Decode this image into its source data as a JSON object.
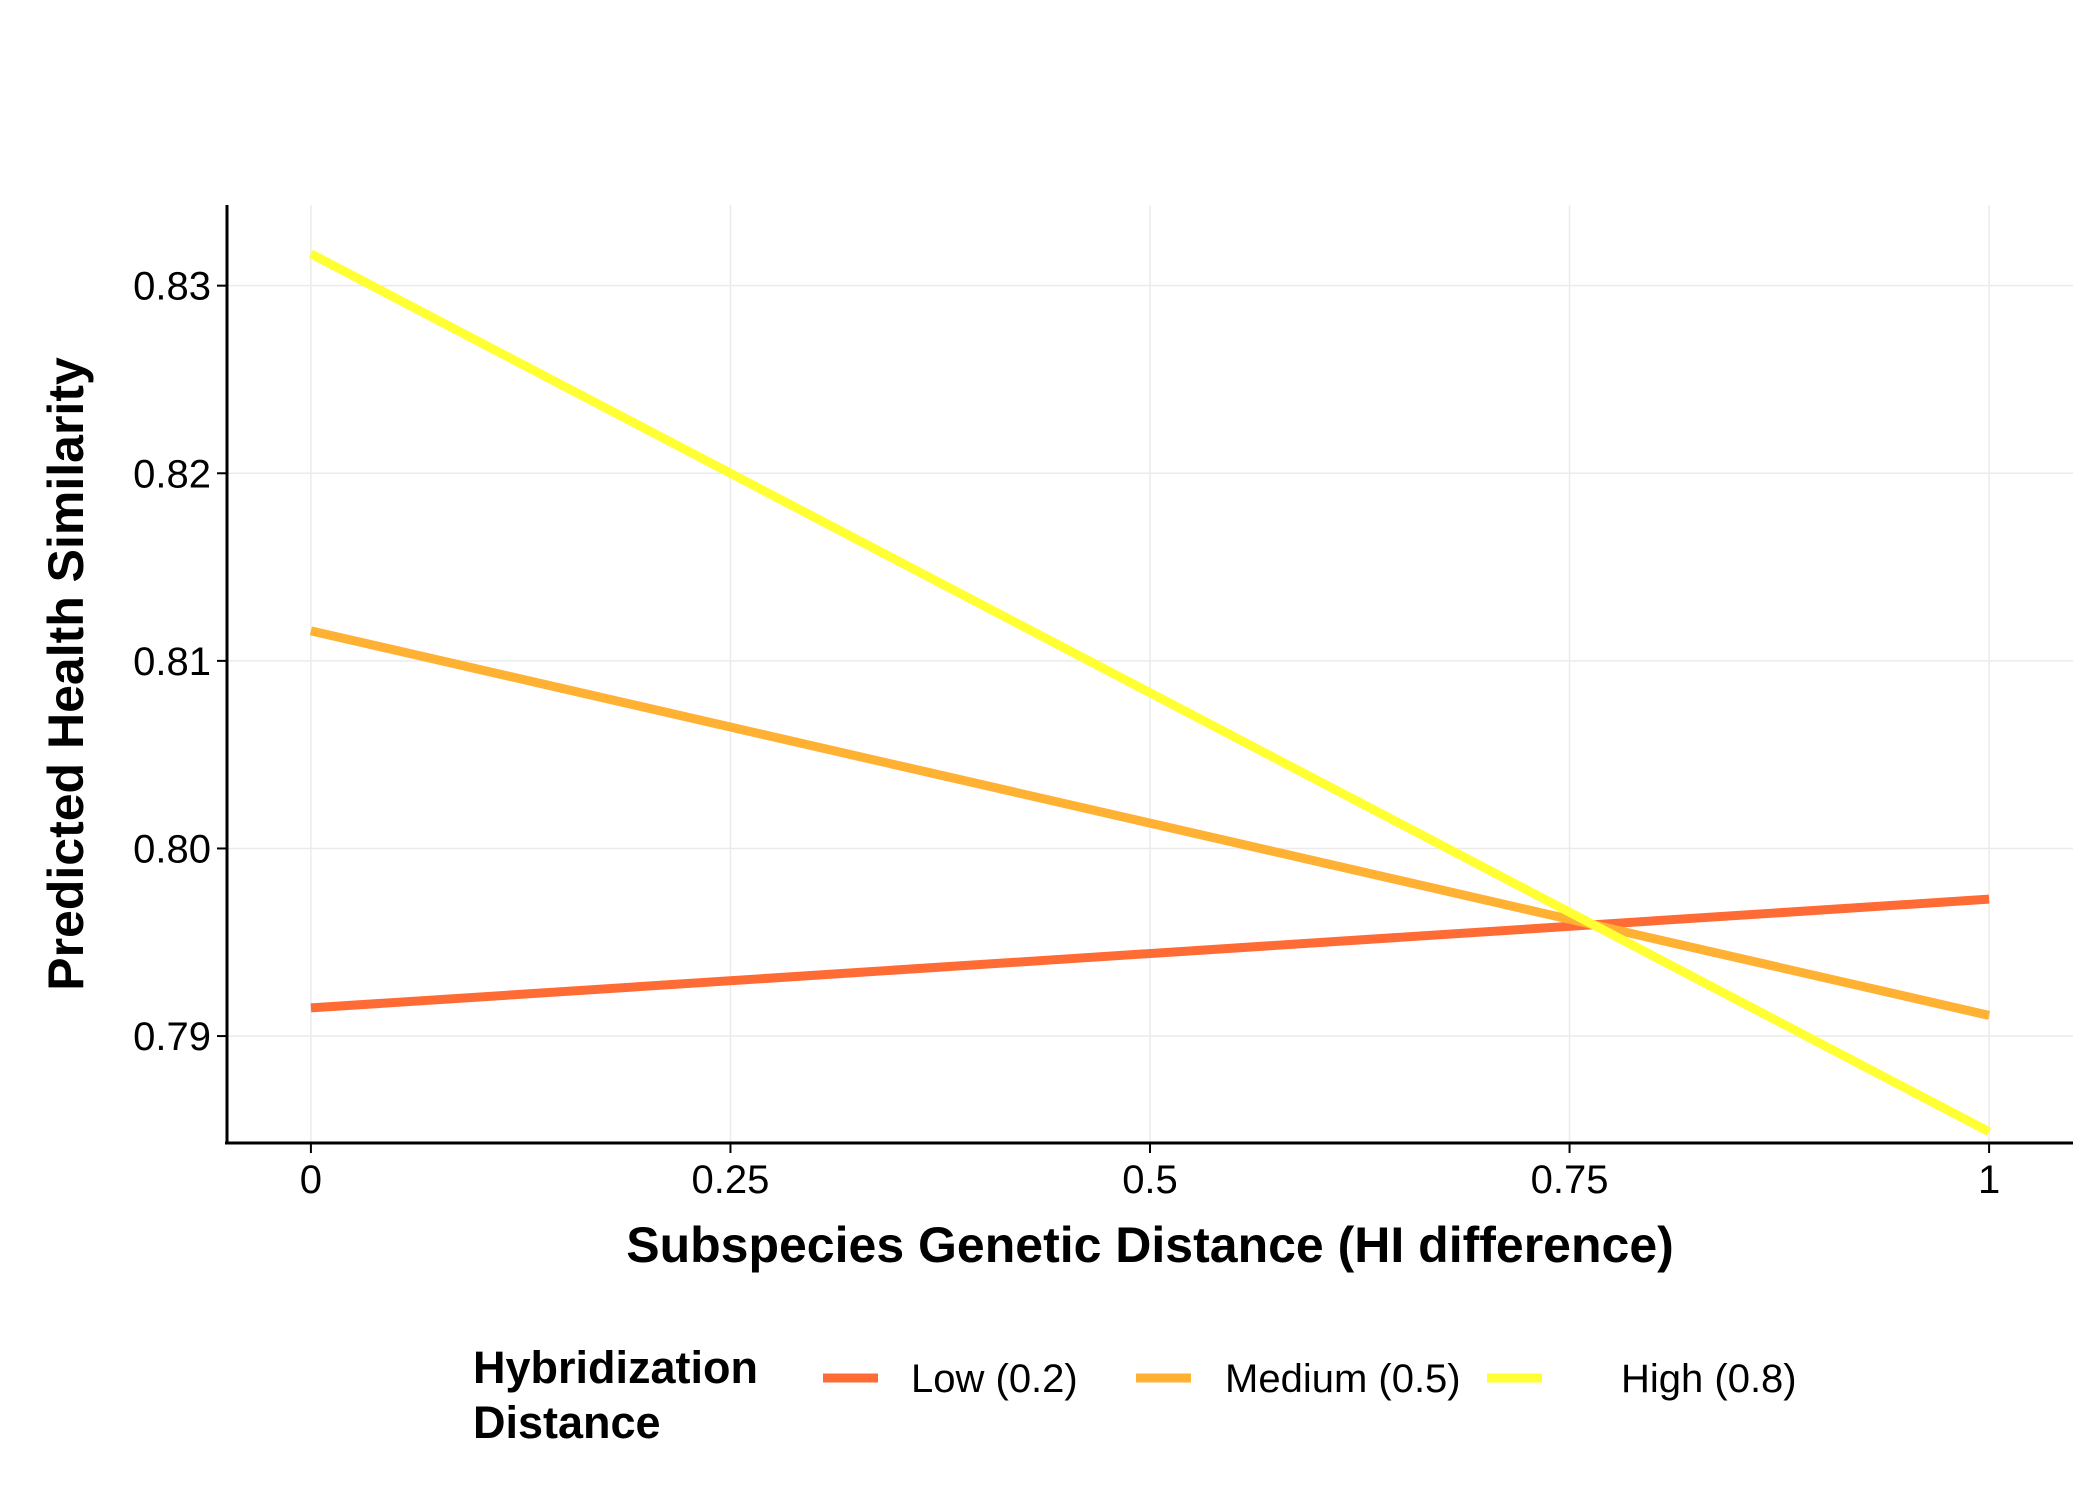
{
  "chart_data": {
    "type": "line",
    "title": "",
    "xlabel": "Subspecies Genetic Distance (HI difference)",
    "ylabel": "Predicted Health Similarity",
    "xlim": [
      -0.05,
      1.05
    ],
    "ylim": [
      0.7843,
      0.8343
    ],
    "x_ticks": [
      0,
      0.25,
      0.5,
      0.75,
      1
    ],
    "x_tick_labels": [
      "0",
      "0.25",
      "0.5",
      "0.75",
      "1"
    ],
    "y_ticks": [
      0.79,
      0.8,
      0.81,
      0.82,
      0.83
    ],
    "y_tick_labels": [
      "0.79",
      "0.80",
      "0.81",
      "0.82",
      "0.83"
    ],
    "grid": true,
    "legend": {
      "title_line1": "Hybridization",
      "title_line2": "Distance",
      "position": "bottom"
    },
    "series": [
      {
        "name": "Low (0.2)",
        "color": "#FF6B35",
        "x": [
          0,
          1
        ],
        "y": [
          0.7915,
          0.7973
        ]
      },
      {
        "name": "Medium (0.5)",
        "color": "#FFB133",
        "x": [
          0,
          1
        ],
        "y": [
          0.8116,
          0.7911
        ]
      },
      {
        "name": "High (0.8)",
        "color": "#FFFF33",
        "x": [
          0,
          1
        ],
        "y": [
          0.8317,
          0.7849
        ]
      }
    ]
  }
}
